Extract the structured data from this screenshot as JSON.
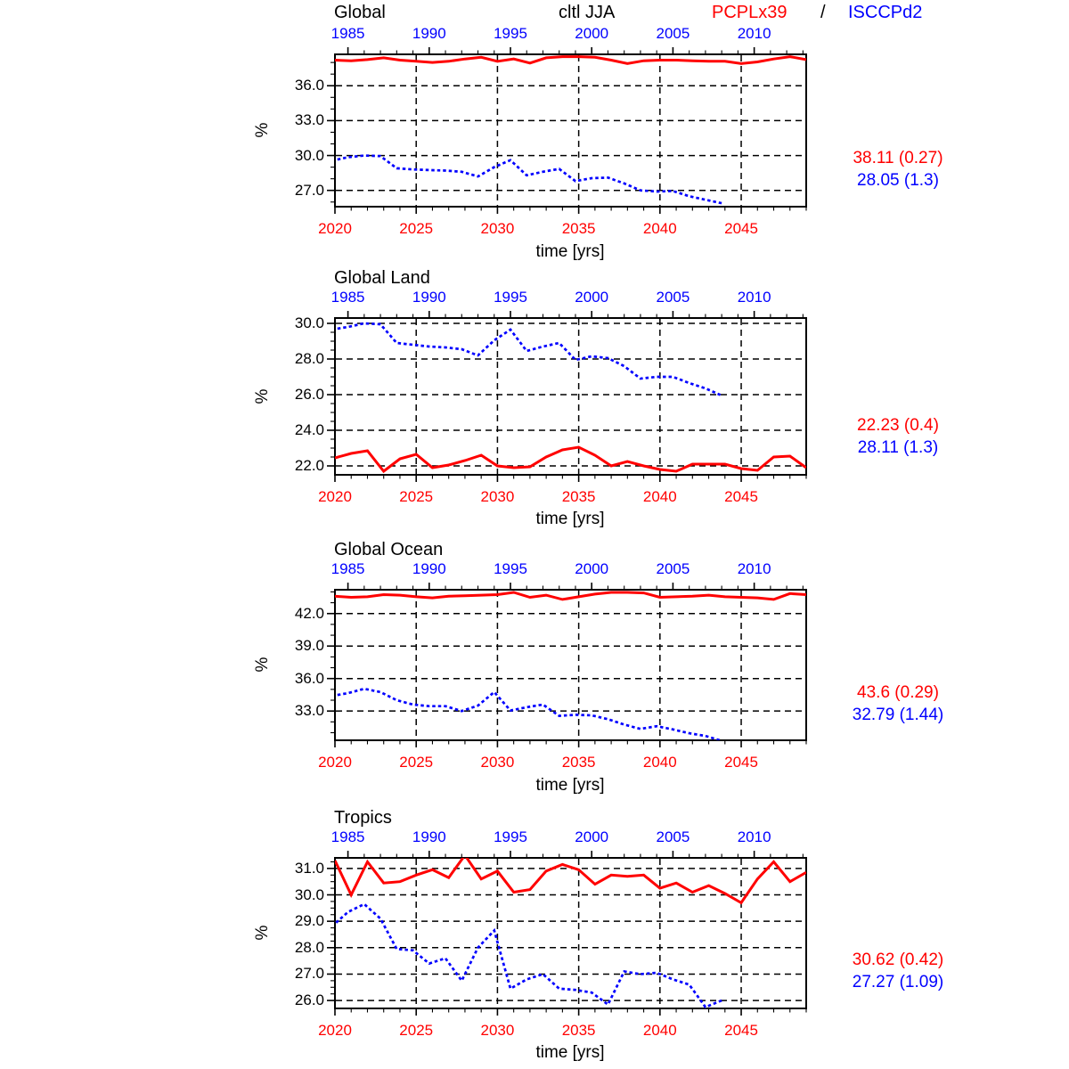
{
  "header": {
    "variable": "cltl JJA",
    "series1_label": "PCPLx39",
    "separator": "/",
    "series2_label": "ISCCPd2"
  },
  "xlabel": "time [yrs]",
  "ylabel": "%",
  "colors": {
    "series1": "#ff0000",
    "series2": "#0000ff",
    "axis": "#000000",
    "grid": "#000000"
  },
  "bottom_axis": {
    "range": [
      2020,
      2049
    ],
    "major_ticks": [
      2020,
      2025,
      2030,
      2035,
      2040,
      2045
    ],
    "minor_step": 1,
    "label_color": "#ff0000"
  },
  "top_axis": {
    "range": [
      1984.2,
      2013.2
    ],
    "major_ticks": [
      1985,
      1990,
      1995,
      2000,
      2005,
      2010
    ],
    "minor_step": 1,
    "label_color": "#0000ff"
  },
  "chart_data": [
    {
      "type": "line",
      "title": "Global",
      "ylim": [
        25.6,
        38.7
      ],
      "yticks": [
        27.0,
        30.0,
        33.0,
        36.0
      ],
      "ytick_minor_step": 1.0,
      "grid": true,
      "series": [
        {
          "name": "PCPLx39",
          "color": "#ff0000",
          "line_style": "solid",
          "axis": "bottom",
          "x_start": 2020,
          "x_step": 1,
          "values": [
            38.2,
            38.15,
            38.25,
            38.4,
            38.2,
            38.1,
            38.0,
            38.1,
            38.3,
            38.45,
            38.1,
            38.3,
            37.95,
            38.4,
            38.5,
            38.5,
            38.45,
            38.2,
            37.9,
            38.15,
            38.2,
            38.2,
            38.15,
            38.1,
            38.1,
            37.9,
            38.05,
            38.3,
            38.5,
            38.25
          ]
        },
        {
          "name": "ISCCPd2",
          "color": "#0000ff",
          "line_style": "dotted",
          "axis": "top",
          "x_start": 1984,
          "x_step": 1,
          "values": [
            29.55,
            29.85,
            30.0,
            29.95,
            28.9,
            28.8,
            28.75,
            28.7,
            28.6,
            28.2,
            29.0,
            29.6,
            28.3,
            28.6,
            28.85,
            27.8,
            28.05,
            28.1,
            27.6,
            27.0,
            26.9,
            26.95,
            26.5,
            26.2,
            25.9
          ]
        }
      ],
      "stats": {
        "pcplx39": "38.11 (0.27)",
        "isccpd2": "28.05 (1.3)"
      }
    },
    {
      "type": "line",
      "title": "Global Land",
      "ylim": [
        21.5,
        30.3
      ],
      "yticks": [
        22.0,
        24.0,
        26.0,
        28.0,
        30.0
      ],
      "ytick_minor_step": 0.5,
      "grid": true,
      "series": [
        {
          "name": "PCPLx39",
          "color": "#ff0000",
          "line_style": "solid",
          "axis": "bottom",
          "x_start": 2020,
          "x_step": 1,
          "values": [
            22.45,
            22.7,
            22.85,
            21.7,
            22.4,
            22.65,
            21.9,
            22.05,
            22.3,
            22.6,
            22.0,
            21.9,
            21.95,
            22.5,
            22.9,
            23.05,
            22.6,
            22.0,
            22.25,
            22.0,
            21.8,
            21.7,
            22.1,
            22.1,
            22.1,
            21.85,
            21.75,
            22.5,
            22.55,
            21.9
          ]
        },
        {
          "name": "ISCCPd2",
          "color": "#0000ff",
          "line_style": "dotted",
          "axis": "top",
          "x_start": 1984,
          "x_step": 1,
          "values": [
            29.65,
            29.8,
            30.0,
            29.95,
            28.9,
            28.8,
            28.7,
            28.65,
            28.55,
            28.2,
            29.05,
            29.65,
            28.45,
            28.7,
            28.9,
            27.95,
            28.15,
            28.05,
            27.6,
            26.9,
            27.0,
            27.0,
            26.65,
            26.35,
            25.95
          ]
        }
      ],
      "stats": {
        "pcplx39": "22.23 (0.4)",
        "isccpd2": "28.11 (1.3)"
      }
    },
    {
      "type": "line",
      "title": "Global Ocean",
      "ylim": [
        30.3,
        44.2
      ],
      "yticks": [
        33.0,
        36.0,
        39.0,
        42.0
      ],
      "ytick_minor_step": 1.0,
      "grid": true,
      "series": [
        {
          "name": "PCPLx39",
          "color": "#ff0000",
          "line_style": "solid",
          "axis": "bottom",
          "x_start": 2020,
          "x_step": 1,
          "values": [
            43.6,
            43.5,
            43.55,
            43.75,
            43.7,
            43.55,
            43.45,
            43.6,
            43.65,
            43.7,
            43.75,
            43.95,
            43.5,
            43.7,
            43.3,
            43.55,
            43.8,
            43.95,
            43.95,
            43.9,
            43.5,
            43.55,
            43.6,
            43.7,
            43.55,
            43.5,
            43.45,
            43.3,
            43.85,
            43.75
          ]
        },
        {
          "name": "ISCCPd2",
          "color": "#0000ff",
          "line_style": "dotted",
          "axis": "top",
          "x_start": 1984,
          "x_step": 1,
          "values": [
            34.4,
            34.65,
            35.05,
            34.75,
            34.0,
            33.6,
            33.45,
            33.45,
            33.0,
            33.5,
            34.75,
            33.05,
            33.35,
            33.6,
            32.55,
            32.65,
            32.6,
            32.25,
            31.75,
            31.35,
            31.6,
            31.3,
            30.95,
            30.7,
            30.25
          ]
        }
      ],
      "stats": {
        "pcplx39": "43.6 (0.29)",
        "isccpd2": "32.79 (1.44)"
      }
    },
    {
      "type": "line",
      "title": "Tropics",
      "ylim": [
        25.7,
        31.4
      ],
      "yticks": [
        26.0,
        27.0,
        28.0,
        29.0,
        30.0,
        31.0
      ],
      "ytick_minor_step": 0.25,
      "grid": true,
      "series": [
        {
          "name": "PCPLx39",
          "color": "#ff0000",
          "line_style": "solid",
          "axis": "bottom",
          "x_start": 2020,
          "x_step": 1,
          "values": [
            31.3,
            30.0,
            31.25,
            30.45,
            30.5,
            30.75,
            30.95,
            30.65,
            31.5,
            30.6,
            30.9,
            30.1,
            30.2,
            30.9,
            31.15,
            30.95,
            30.4,
            30.75,
            30.7,
            30.75,
            30.25,
            30.45,
            30.1,
            30.35,
            30.05,
            29.7,
            30.6,
            31.25,
            30.5,
            30.85
          ]
        },
        {
          "name": "ISCCPd2",
          "color": "#0000ff",
          "line_style": "dotted",
          "axis": "top",
          "x_start": 1984,
          "x_step": 1,
          "values": [
            28.8,
            29.35,
            29.65,
            29.1,
            27.95,
            27.9,
            27.4,
            27.6,
            26.75,
            28.0,
            28.65,
            26.45,
            26.8,
            27.0,
            26.45,
            26.4,
            26.3,
            25.85,
            27.1,
            27.0,
            27.05,
            26.8,
            26.6,
            25.75,
            26.0
          ]
        }
      ],
      "stats": {
        "pcplx39": "30.62 (0.42)",
        "isccpd2": "27.27 (1.09)"
      }
    }
  ]
}
